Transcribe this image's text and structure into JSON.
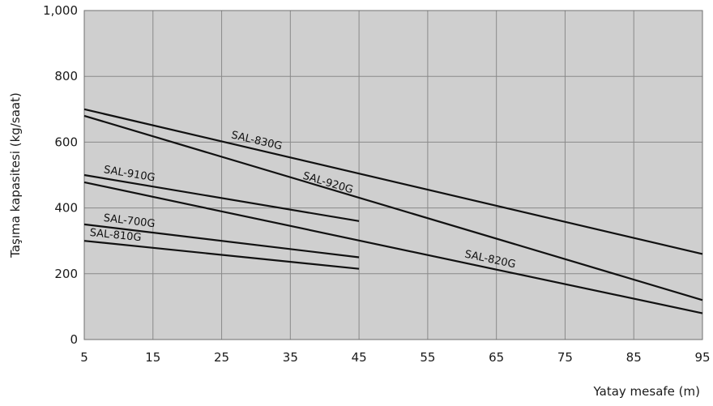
{
  "chart_data": {
    "type": "line",
    "xlabel": "Yatay mesafe (m)",
    "ylabel": "Taşıma kapasitesi (kg/saat)",
    "xlim": [
      5,
      95
    ],
    "ylim": [
      0,
      1000
    ],
    "x_ticks": [
      "5",
      "15",
      "25",
      "35",
      "45",
      "55",
      "65",
      "75",
      "85",
      "95"
    ],
    "y_ticks": [
      "0",
      "200",
      "400",
      "600",
      "800",
      "1,000"
    ],
    "grid": true,
    "background": "#cfcfcf",
    "series": [
      {
        "name": "SAL-830G",
        "x": [
          5,
          95
        ],
        "y": [
          700,
          260
        ]
      },
      {
        "name": "SAL-920G",
        "x": [
          5,
          95
        ],
        "y": [
          680,
          120
        ]
      },
      {
        "name": "SAL-910G",
        "x": [
          5,
          45
        ],
        "y": [
          500,
          360
        ]
      },
      {
        "name": "SAL-820G",
        "x": [
          5,
          95
        ],
        "y": [
          478,
          80
        ]
      },
      {
        "name": "SAL-700G",
        "x": [
          5,
          45
        ],
        "y": [
          350,
          250
        ]
      },
      {
        "name": "SAL-810G",
        "x": [
          5,
          45
        ],
        "y": [
          300,
          215
        ]
      }
    ]
  }
}
